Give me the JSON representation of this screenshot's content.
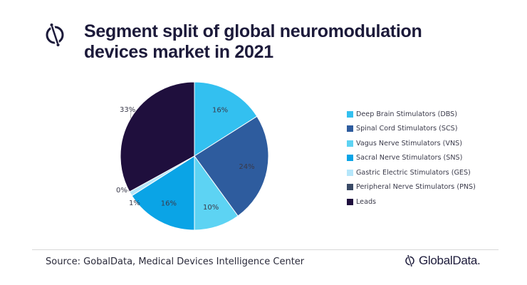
{
  "chart_data": {
    "type": "pie",
    "title": "Segment split of global neuromodulation devices market in 2021",
    "unit": "%",
    "legend_position": "right",
    "slices": [
      {
        "name": "Deep Brain Stimulators (DBS)",
        "value": 16,
        "label": "16%",
        "color": "#33c0f0"
      },
      {
        "name": "Spinal Cord Stimulators (SCS)",
        "value": 24,
        "label": "24%",
        "color": "#2e5c9e"
      },
      {
        "name": "Vagus Nerve Stimulators (VNS)",
        "value": 10,
        "label": "10%",
        "color": "#5dd3f3"
      },
      {
        "name": "Sacral Nerve Stimulators (SNS)",
        "value": 16,
        "label": "16%",
        "color": "#0aa4e6"
      },
      {
        "name": "Gastric Electric Stimulators (GES)",
        "value": 1,
        "label": "1%",
        "color": "#b5e6fa"
      },
      {
        "name": "Peripheral Nerve Stimulators (PNS)",
        "value": 0,
        "label": "0%",
        "color": "#3a4a66"
      },
      {
        "name": "Leads",
        "value": 33,
        "label": "33%",
        "color": "#1f0f3d"
      }
    ]
  },
  "header": {
    "title": "Segment split of global neuromodulation devices market in 2021",
    "logo_icon": "globaldata-mark-icon"
  },
  "footer": {
    "source": "Source: GobalData, Medical Devices Intelligence Center",
    "brand": "GlobalData."
  }
}
